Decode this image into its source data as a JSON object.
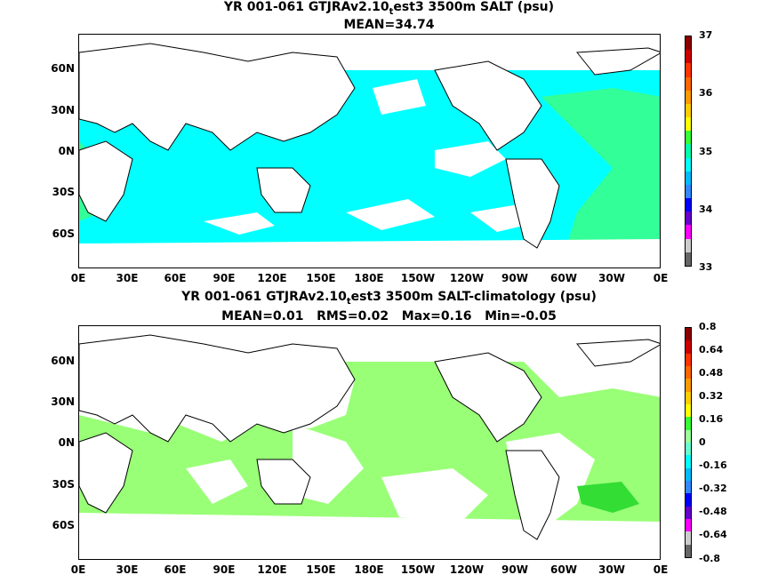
{
  "panel1": {
    "title_pre": "YR 001-061 GTJRAv2.10",
    "title_sub": "t",
    "title_post": "est3 3500m SALT (psu)",
    "stats": "MEAN=34.74",
    "cbar_labels": [
      "37",
      "36",
      "35",
      "34",
      "33"
    ],
    "cbar_colors": [
      "#8b0000",
      "#cc0000",
      "#ff3300",
      "#ff6600",
      "#ff9900",
      "#ffcc00",
      "#ffff00",
      "#33ff33",
      "#00ffaa",
      "#00ffff",
      "#00bbff",
      "#3388ff",
      "#0000ff",
      "#6600cc",
      "#ff00ff",
      "#cccccc",
      "#666666"
    ]
  },
  "panel2": {
    "title_pre": "YR 001-061 GTJRAv2.10",
    "title_sub": "t",
    "title_post": "est3 3500m SALT-climatology (psu)",
    "stats": "MEAN=0.01   RMS=0.02   Max=0.16   Min=-0.05",
    "cbar_labels": [
      "0.8",
      "0.64",
      "0.48",
      "0.32",
      "0.16",
      "0",
      "-0.16",
      "-0.32",
      "-0.48",
      "-0.64",
      "-0.8"
    ],
    "cbar_colors": [
      "#8b0000",
      "#cc0000",
      "#ff3300",
      "#ff6600",
      "#ff9900",
      "#ffcc00",
      "#ffff00",
      "#33ff33",
      "#99ff99",
      "#66ffcc",
      "#00ffff",
      "#00bbff",
      "#3388ff",
      "#0000ff",
      "#6600cc",
      "#ff00ff",
      "#cccccc",
      "#666666"
    ]
  },
  "axes": {
    "lat_labels": [
      "60N",
      "30N",
      "0N",
      "30S",
      "60S"
    ],
    "lon_labels": [
      "0E",
      "30E",
      "60E",
      "90E",
      "120E",
      "150E",
      "180E",
      "150W",
      "120W",
      "90W",
      "60W",
      "30W",
      "0E"
    ]
  }
}
